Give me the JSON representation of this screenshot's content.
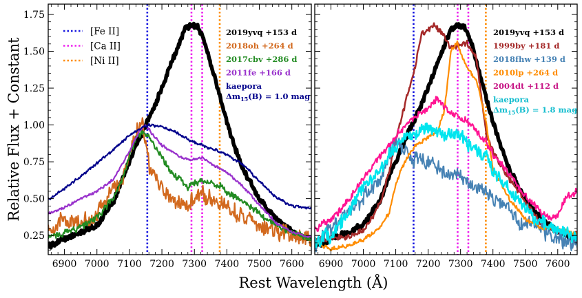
{
  "chart_data": {
    "type": "line",
    "ylabel": "Relative Flux + Constant",
    "xlabel": "Rest Wavelength (Å)",
    "xlim": [
      6850,
      7660
    ],
    "ylim": [
      0.12,
      1.82
    ],
    "xticks": [
      6900,
      7000,
      7100,
      7200,
      7300,
      7400,
      7500,
      7600
    ],
    "yticks": [
      0.25,
      0.5,
      0.75,
      1.0,
      1.25,
      1.5,
      1.75
    ],
    "ytick_labels": [
      "0.25",
      "0.50",
      "0.75",
      "1.00",
      "1.25",
      "1.50",
      "1.75"
    ],
    "line_markers": [
      {
        "name": "[Fe II]",
        "x": 7155,
        "color": "#1515e0"
      },
      {
        "name": "[Ca II]",
        "x": 7291,
        "color": "#ee20ee"
      },
      {
        "name": "[Ca II]",
        "x": 7324,
        "color": "#ee20ee"
      },
      {
        "name": "[Ni II]",
        "x": 7378,
        "color": "#ff8c00"
      }
    ],
    "legend": [
      {
        "label": "[Fe II]",
        "color": "#1515e0"
      },
      {
        "label": "[Ca II]",
        "color": "#ee20ee"
      },
      {
        "label": "[Ni II]",
        "color": "#ff8c00"
      }
    ],
    "panels": [
      {
        "name": "left",
        "annotations": [
          {
            "lines": [
              "2019yvq +153 d"
            ],
            "color": "#000000"
          },
          {
            "lines": [
              "2018oh  +264 d"
            ],
            "color": "#d2691e"
          },
          {
            "lines": [
              "2017cbv  +286 d"
            ],
            "color": "#228b22"
          },
          {
            "lines": [
              "2011fe  +166 d"
            ],
            "color": "#9932cc"
          },
          {
            "lines": [
              "kaepora",
              "Δm15(B) = 1.0 mag"
            ],
            "color": "#00008b"
          }
        ],
        "series": [
          {
            "name": "2019yvq +153 d",
            "color": "#000000",
            "width": 5.5,
            "noise": 0.02,
            "x": [
              6855,
              6900,
              6950,
              7000,
              7050,
              7100,
              7130,
              7150,
              7180,
              7200,
              7240,
              7270,
              7290,
              7310,
              7330,
              7350,
              7380,
              7400,
              7420,
              7450,
              7500,
              7550,
              7600,
              7655
            ],
            "y": [
              0.18,
              0.23,
              0.27,
              0.32,
              0.48,
              0.76,
              0.9,
              1.0,
              1.14,
              1.25,
              1.48,
              1.65,
              1.68,
              1.66,
              1.58,
              1.42,
              1.18,
              1.02,
              0.88,
              0.7,
              0.5,
              0.36,
              0.28,
              0.22
            ]
          },
          {
            "name": "2018oh +264 d",
            "color": "#d2691e",
            "width": 2.2,
            "noise": 0.06,
            "x": [
              6855,
              6900,
              6950,
              7000,
              7050,
              7080,
              7100,
              7120,
              7140,
              7160,
              7180,
              7200,
              7220,
              7250,
              7270,
              7300,
              7320,
              7350,
              7380,
              7400,
              7450,
              7500,
              7550,
              7600,
              7655
            ],
            "y": [
              0.3,
              0.36,
              0.32,
              0.4,
              0.56,
              0.64,
              0.82,
              0.94,
              1.02,
              0.74,
              0.64,
              0.58,
              0.52,
              0.48,
              0.44,
              0.5,
              0.54,
              0.5,
              0.48,
              0.44,
              0.38,
              0.3,
              0.28,
              0.27,
              0.22
            ]
          },
          {
            "name": "2017cbv +286 d",
            "color": "#228b22",
            "width": 2.2,
            "noise": 0.025,
            "x": [
              6855,
              6900,
              6950,
              7000,
              7050,
              7080,
              7100,
              7120,
              7140,
              7160,
              7180,
              7200,
              7220,
              7250,
              7280,
              7300,
              7320,
              7350,
              7380,
              7400,
              7450,
              7500,
              7550,
              7600,
              7655
            ],
            "y": [
              0.24,
              0.27,
              0.31,
              0.37,
              0.5,
              0.63,
              0.8,
              0.9,
              0.95,
              0.92,
              0.84,
              0.78,
              0.7,
              0.64,
              0.58,
              0.61,
              0.62,
              0.61,
              0.58,
              0.55,
              0.48,
              0.4,
              0.32,
              0.27,
              0.23
            ]
          },
          {
            "name": "2011fe +166 d",
            "color": "#9932cc",
            "width": 2.2,
            "noise": 0.01,
            "x": [
              6855,
              6900,
              6950,
              7000,
              7050,
              7100,
              7130,
              7150,
              7170,
              7200,
              7230,
              7260,
              7290,
              7320,
              7350,
              7380,
              7400,
              7450,
              7500,
              7550,
              7600,
              7655
            ],
            "y": [
              0.4,
              0.44,
              0.5,
              0.55,
              0.63,
              0.82,
              0.96,
              1.0,
              0.94,
              0.86,
              0.82,
              0.78,
              0.76,
              0.78,
              0.74,
              0.7,
              0.68,
              0.58,
              0.46,
              0.34,
              0.27,
              0.24
            ]
          },
          {
            "name": "kaepora",
            "color": "#00008b",
            "width": 2.2,
            "noise": 0.01,
            "x": [
              6855,
              6900,
              6950,
              7000,
              7050,
              7100,
              7140,
              7160,
              7200,
              7250,
              7300,
              7350,
              7400,
              7450,
              7500,
              7550,
              7600,
              7655
            ],
            "y": [
              0.5,
              0.57,
              0.65,
              0.74,
              0.83,
              0.93,
              0.98,
              1.0,
              0.99,
              0.94,
              0.88,
              0.84,
              0.8,
              0.73,
              0.62,
              0.51,
              0.45,
              0.44
            ]
          }
        ]
      },
      {
        "name": "right",
        "annotations": [
          {
            "lines": [
              "2019yvq +153 d"
            ],
            "color": "#000000"
          },
          {
            "lines": [
              "1999by  +181 d"
            ],
            "color": "#a52a2a"
          },
          {
            "lines": [
              "2018fhw  +139 d"
            ],
            "color": "#4682b4"
          },
          {
            "lines": [
              "2010lp  +264 d"
            ],
            "color": "#ff8c00"
          },
          {
            "lines": [
              "2004dt  +112 d"
            ],
            "color": "#c71585"
          },
          {
            "lines": [
              "kaepora",
              "Δm15(B) = 1.8 mag"
            ],
            "color": "#17becf"
          }
        ],
        "series": [
          {
            "name": "2019yvq +153 d",
            "color": "#000000",
            "width": 5.5,
            "noise": 0.02,
            "x": [
              6855,
              6900,
              6950,
              7000,
              7050,
              7100,
              7130,
              7150,
              7180,
              7200,
              7240,
              7270,
              7290,
              7310,
              7330,
              7350,
              7380,
              7400,
              7420,
              7450,
              7500,
              7550,
              7600,
              7655
            ],
            "y": [
              0.18,
              0.23,
              0.27,
              0.32,
              0.48,
              0.76,
              0.9,
              1.0,
              1.14,
              1.25,
              1.48,
              1.65,
              1.68,
              1.66,
              1.58,
              1.42,
              1.18,
              1.02,
              0.88,
              0.7,
              0.5,
              0.36,
              0.28,
              0.22
            ]
          },
          {
            "name": "1999by +181 d",
            "color": "#a52a2a",
            "width": 2.5,
            "noise": 0.02,
            "x": [
              6855,
              6900,
              6950,
              7000,
              7050,
              7080,
              7100,
              7130,
              7160,
              7180,
              7200,
              7220,
              7250,
              7270,
              7300,
              7320,
              7350,
              7380,
              7400,
              7420,
              7450,
              7500,
              7550,
              7600,
              7655
            ],
            "y": [
              0.22,
              0.24,
              0.24,
              0.28,
              0.46,
              0.68,
              0.9,
              1.15,
              1.4,
              1.62,
              1.64,
              1.68,
              1.6,
              1.52,
              1.54,
              1.56,
              1.44,
              0.92,
              0.82,
              0.74,
              0.64,
              0.48,
              0.32,
              0.27,
              0.26
            ]
          },
          {
            "name": "2018fhw +139 d",
            "color": "#4682b4",
            "width": 2.0,
            "noise": 0.06,
            "x": [
              6855,
              6900,
              6950,
              7000,
              7050,
              7080,
              7100,
              7130,
              7160,
              7200,
              7250,
              7300,
              7350,
              7400,
              7450,
              7480,
              7500,
              7550,
              7600,
              7655
            ],
            "y": [
              0.2,
              0.3,
              0.4,
              0.5,
              0.62,
              0.78,
              0.9,
              0.82,
              0.76,
              0.74,
              0.68,
              0.66,
              0.58,
              0.5,
              0.42,
              0.32,
              0.34,
              0.3,
              0.24,
              0.2
            ]
          },
          {
            "name": "2010lp +264 d",
            "color": "#ff8c00",
            "width": 2.2,
            "noise": 0.015,
            "x": [
              6855,
              6900,
              6950,
              7000,
              7050,
              7080,
              7100,
              7130,
              7160,
              7200,
              7230,
              7250,
              7270,
              7290,
              7300,
              7320,
              7350,
              7380,
              7400,
              7450,
              7500,
              7550,
              7600,
              7655
            ],
            "y": [
              0.2,
              0.16,
              0.18,
              0.22,
              0.3,
              0.4,
              0.6,
              0.76,
              0.86,
              0.92,
              0.96,
              1.1,
              1.5,
              1.56,
              1.48,
              1.4,
              1.3,
              1.0,
              0.7,
              0.5,
              0.36,
              0.3,
              0.3,
              0.26
            ]
          },
          {
            "name": "2004dt +112 d",
            "color": "#ff1493",
            "width": 2.2,
            "noise": 0.025,
            "x": [
              6855,
              6900,
              6950,
              7000,
              7050,
              7100,
              7130,
              7160,
              7200,
              7230,
              7260,
              7290,
              7320,
              7350,
              7380,
              7400,
              7450,
              7500,
              7550,
              7580,
              7600,
              7620,
              7655
            ],
            "y": [
              0.3,
              0.36,
              0.48,
              0.64,
              0.78,
              0.92,
              1.0,
              1.05,
              1.12,
              1.18,
              1.1,
              1.06,
              1.02,
              0.96,
              0.88,
              0.8,
              0.66,
              0.52,
              0.4,
              0.36,
              0.38,
              0.5,
              0.55
            ]
          },
          {
            "name": "kaepora",
            "color": "#00e5ee",
            "width": 2.5,
            "noise": 0.05,
            "x": [
              6855,
              6900,
              6950,
              7000,
              7050,
              7080,
              7100,
              7130,
              7160,
              7200,
              7230,
              7260,
              7290,
              7320,
              7350,
              7380,
              7400,
              7450,
              7500,
              7550,
              7600,
              7655
            ],
            "y": [
              0.22,
              0.24,
              0.4,
              0.58,
              0.7,
              0.8,
              0.86,
              0.92,
              0.94,
              0.98,
              0.96,
              0.92,
              0.95,
              0.88,
              0.82,
              0.78,
              0.7,
              0.56,
              0.44,
              0.34,
              0.3,
              0.24
            ]
          }
        ]
      }
    ]
  }
}
